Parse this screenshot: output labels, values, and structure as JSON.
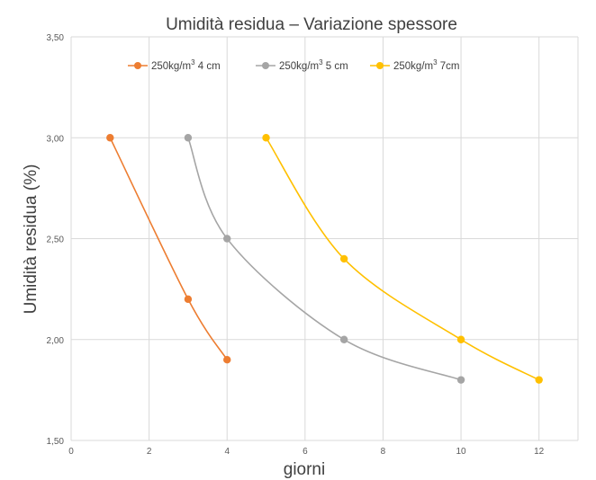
{
  "chart_data": {
    "type": "scatter",
    "title": "Umidità residua – Variazione spessore",
    "xlabel": "giorni",
    "ylabel": "Umidità residua (%)",
    "xlim": [
      0,
      13
    ],
    "ylim": [
      1.5,
      3.5
    ],
    "x_ticks": [
      "0",
      "2",
      "4",
      "6",
      "8",
      "10",
      "12"
    ],
    "y_ticks": [
      "1,50",
      "2,00",
      "2,50",
      "3,00",
      "3,50"
    ],
    "grid": true,
    "legend_position": "top",
    "series": [
      {
        "name_prefix": "250kg/m",
        "name_sup": "3",
        "name_suffix": " 4 cm",
        "color": "#ED7D31",
        "x": [
          1,
          3,
          4
        ],
        "y": [
          3.0,
          2.2,
          1.9
        ]
      },
      {
        "name_prefix": "250kg/m",
        "name_sup": "3",
        "name_suffix": " 5 cm",
        "color": "#A5A5A5",
        "x": [
          3,
          4,
          7,
          10
        ],
        "y": [
          3.0,
          2.5,
          2.0,
          1.8
        ]
      },
      {
        "name_prefix": "250kg/m",
        "name_sup": "3",
        "name_suffix": " 7cm",
        "color": "#FFC000",
        "x": [
          5,
          7,
          10,
          12
        ],
        "y": [
          3.0,
          2.4,
          2.0,
          1.8
        ]
      }
    ]
  }
}
